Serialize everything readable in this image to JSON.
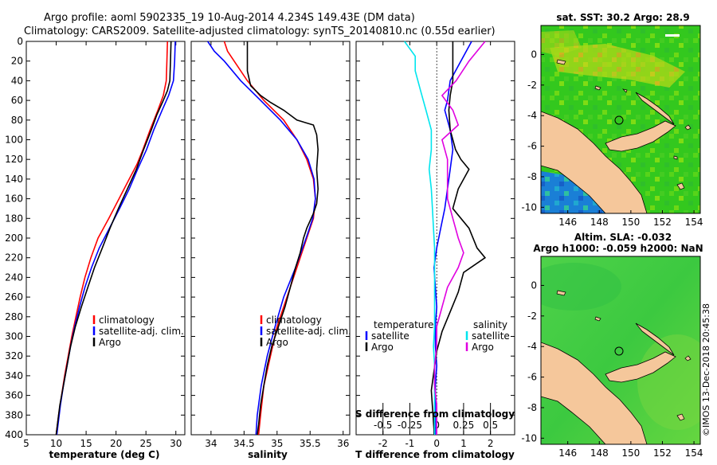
{
  "title": {
    "line1": "Argo profile: aoml 5902335_19 10-Aug-2014 4.234S 149.43E (DM data)",
    "line2": "Climatology: CARS2009. Satellite-adjusted climatology: synTS_20140810.nc (0.55d earlier)"
  },
  "credit": "©IMOS 13-Dec-2018 20:45:38",
  "colors": {
    "climatology": "#ff0000",
    "satellite": "#0000ff",
    "argo": "#000000",
    "salinity_sat": "#00e5ee",
    "salinity_diff": "#e000e0",
    "land": "#f5c79b",
    "sea_green": "#22cc22"
  },
  "chart_data": [
    {
      "id": "temperature",
      "type": "line",
      "xlabel": "temperature (deg C)",
      "ylabel": "",
      "xlim": [
        5,
        31.5
      ],
      "ylim": [
        400,
        0
      ],
      "x_ticks": [
        5,
        10,
        15,
        20,
        25,
        30
      ],
      "x_tick_labels": [
        "5",
        "10",
        "15",
        "20",
        "25",
        "30"
      ],
      "y_ticks": [
        0,
        20,
        40,
        60,
        80,
        100,
        120,
        140,
        160,
        180,
        200,
        220,
        240,
        260,
        280,
        300,
        320,
        340,
        360,
        380,
        400
      ],
      "legend": {
        "position": "bottom-right",
        "entries": [
          {
            "label": "climatology",
            "series": "climatology"
          },
          {
            "label": "satellite-adj. clim.",
            "series": "satellite"
          },
          {
            "label": "Argo",
            "series": "argo"
          }
        ]
      },
      "series": [
        {
          "name": "climatology",
          "color": "#ff0000",
          "depth": [
            0,
            20,
            40,
            55,
            70,
            90,
            110,
            125,
            140,
            160,
            180,
            200,
            220,
            240,
            260,
            280,
            300,
            320,
            340,
            360,
            380,
            400
          ],
          "values": [
            28.6,
            28.5,
            28.4,
            27.9,
            27.0,
            25.7,
            24.5,
            23.5,
            22.2,
            20.5,
            18.8,
            17.0,
            15.8,
            14.8,
            14.0,
            13.3,
            12.6,
            12.0,
            11.4,
            10.9,
            10.4,
            10.0
          ]
        },
        {
          "name": "satellite-adj. clim.",
          "color": "#0000ff",
          "depth": [
            0,
            20,
            40,
            55,
            70,
            90,
            110,
            130,
            150,
            170,
            190,
            210,
            230,
            250,
            270,
            290,
            310,
            330,
            350,
            370,
            390,
            400
          ],
          "values": [
            29.9,
            29.8,
            29.6,
            28.8,
            27.7,
            26.3,
            25.1,
            23.6,
            22.2,
            20.6,
            18.9,
            17.2,
            15.9,
            14.8,
            13.9,
            13.1,
            12.4,
            11.8,
            11.2,
            10.7,
            10.3,
            10.1
          ]
        },
        {
          "name": "Argo",
          "color": "#000000",
          "depth": [
            0,
            20,
            40,
            50,
            60,
            75,
            90,
            110,
            130,
            150,
            170,
            190,
            210,
            230,
            250,
            270,
            290,
            310,
            330,
            350,
            370,
            390,
            400
          ],
          "values": [
            29.2,
            29.1,
            29.0,
            28.6,
            27.9,
            26.8,
            25.9,
            24.6,
            23.4,
            21.9,
            20.4,
            19.0,
            17.7,
            16.4,
            15.3,
            14.2,
            13.2,
            12.4,
            11.8,
            11.2,
            10.6,
            10.2,
            10.0
          ]
        }
      ]
    },
    {
      "id": "salinity",
      "type": "line",
      "xlabel": "salinity",
      "ylabel": "",
      "xlim": [
        33.7,
        36.1
      ],
      "ylim": [
        400,
        0
      ],
      "x_ticks": [
        34,
        34.5,
        35,
        35.5,
        36
      ],
      "x_tick_labels": [
        "34",
        "34.5",
        "35",
        "35.5",
        "36"
      ],
      "legend": {
        "position": "bottom-right",
        "entries": [
          {
            "label": "climatology",
            "series": "climatology"
          },
          {
            "label": "satellite-adj. clim.",
            "series": "satellite"
          },
          {
            "label": "Argo",
            "series": "argo"
          }
        ]
      },
      "series": [
        {
          "name": "climatology",
          "color": "#ff0000",
          "depth": [
            0,
            10,
            20,
            40,
            60,
            80,
            100,
            120,
            140,
            160,
            180,
            200,
            230,
            260,
            290,
            320,
            350,
            380,
            400
          ],
          "values": [
            34.2,
            34.25,
            34.35,
            34.55,
            34.8,
            35.1,
            35.3,
            35.45,
            35.55,
            35.58,
            35.55,
            35.45,
            35.3,
            35.15,
            35.0,
            34.9,
            34.8,
            34.75,
            34.72
          ]
        },
        {
          "name": "satellite-adj. clim.",
          "color": "#0000ff",
          "depth": [
            0,
            10,
            20,
            40,
            60,
            80,
            100,
            120,
            140,
            160,
            180,
            200,
            230,
            260,
            290,
            320,
            350,
            380,
            400
          ],
          "values": [
            33.95,
            34.05,
            34.2,
            34.45,
            34.75,
            35.05,
            35.3,
            35.47,
            35.56,
            35.58,
            35.54,
            35.44,
            35.28,
            35.1,
            34.97,
            34.85,
            34.76,
            34.7,
            34.68
          ]
        },
        {
          "name": "Argo",
          "color": "#000000",
          "depth": [
            0,
            30,
            45,
            55,
            62,
            70,
            80,
            85,
            95,
            110,
            130,
            150,
            165,
            175,
            190,
            200,
            215,
            230,
            250,
            270,
            290,
            310,
            330,
            350,
            370,
            390,
            400
          ],
          "values": [
            34.55,
            34.55,
            34.6,
            34.75,
            34.9,
            35.1,
            35.3,
            35.55,
            35.6,
            35.62,
            35.6,
            35.62,
            35.6,
            35.55,
            35.45,
            35.4,
            35.35,
            35.28,
            35.2,
            35.12,
            35.02,
            34.92,
            34.85,
            34.8,
            34.75,
            34.72,
            34.7
          ]
        }
      ]
    },
    {
      "id": "difference",
      "type": "line",
      "xlabel": "T difference from climatology",
      "x2label": "S difference from climatology",
      "xlim": [
        -3.0,
        2.9
      ],
      "ylim": [
        400,
        0
      ],
      "x_ticks": [
        -2,
        -1,
        0,
        1,
        2
      ],
      "x_tick_labels": [
        "-2",
        "-1",
        "0",
        "1",
        "2"
      ],
      "x2_ticks": [
        -0.5,
        -0.25,
        0,
        0.25,
        0.5
      ],
      "x2_tick_labels": [
        "-0.5",
        "-0.25",
        "0",
        "0.25",
        "0.5"
      ],
      "legend": {
        "position": "bottom",
        "temperature_header": "temperature",
        "salinity_header": "salinity",
        "entries": [
          {
            "label": "satellite",
            "series": "T satellite",
            "group": "temperature"
          },
          {
            "label": "Argo",
            "series": "T Argo",
            "group": "temperature"
          },
          {
            "label": "satellite",
            "series": "S satellite",
            "group": "salinity"
          },
          {
            "label": "Argo",
            "series": "S Argo",
            "group": "salinity"
          }
        ]
      },
      "series": [
        {
          "name": "T satellite",
          "color": "#0000ff",
          "depth": [
            0,
            20,
            40,
            60,
            70,
            90,
            110,
            130,
            150,
            170,
            190,
            210,
            230,
            250,
            270,
            290,
            310,
            330,
            350,
            370,
            390,
            400
          ],
          "values": [
            1.3,
            0.9,
            0.5,
            0.4,
            0.3,
            0.5,
            0.6,
            0.5,
            0.4,
            0.3,
            0.15,
            0.0,
            -0.1,
            -0.05,
            0.0,
            -0.05,
            -0.05,
            0.0,
            -0.05,
            -0.05,
            -0.05,
            -0.05
          ]
        },
        {
          "name": "T Argo",
          "color": "#000000",
          "depth": [
            0,
            20,
            40,
            55,
            70,
            90,
            110,
            120,
            130,
            150,
            170,
            190,
            210,
            220,
            235,
            255,
            275,
            295,
            315,
            335,
            355,
            375,
            395,
            400
          ],
          "values": [
            0.6,
            0.6,
            0.6,
            0.5,
            0.45,
            0.5,
            0.7,
            0.9,
            1.2,
            0.8,
            0.6,
            1.2,
            1.5,
            1.8,
            1.0,
            0.8,
            0.5,
            0.2,
            0.0,
            -0.1,
            -0.2,
            -0.15,
            -0.1,
            -0.1
          ]
        },
        {
          "name": "S satellite",
          "color": "#00e5ee",
          "depth": [
            0,
            15,
            30,
            50,
            70,
            90,
            110,
            130,
            150,
            170,
            190,
            210,
            230,
            250,
            270,
            290,
            310,
            330,
            350,
            370,
            390,
            400
          ],
          "values": [
            -0.3,
            -0.2,
            -0.2,
            -0.15,
            -0.1,
            -0.05,
            -0.05,
            -0.07,
            -0.05,
            -0.04,
            -0.03,
            -0.02,
            -0.02,
            -0.02,
            -0.02,
            -0.02,
            -0.03,
            -0.02,
            -0.02,
            -0.02,
            -0.02,
            -0.02
          ]
        },
        {
          "name": "S Argo",
          "color": "#e000e0",
          "depth": [
            0,
            20,
            40,
            55,
            70,
            85,
            100,
            120,
            140,
            160,
            180,
            200,
            215,
            230,
            250,
            270,
            290,
            310,
            330,
            350,
            370,
            390,
            400
          ],
          "values": [
            0.45,
            0.3,
            0.18,
            0.05,
            0.15,
            0.2,
            0.05,
            0.1,
            0.1,
            0.1,
            0.15,
            0.2,
            0.25,
            0.2,
            0.1,
            0.05,
            0.0,
            0.0,
            -0.02,
            -0.02,
            0.0,
            0.0,
            0.0
          ]
        }
      ]
    },
    {
      "id": "sst_map",
      "type": "heatmap",
      "title": "sat. SST: 30.2 Argo: 28.9",
      "x_ticks": [
        146,
        148,
        150,
        152,
        154
      ],
      "x_tick_labels": [
        "146",
        "148",
        "150",
        "152",
        "154"
      ],
      "y_ticks": [
        0,
        -2,
        -4,
        -6,
        -8,
        -10
      ],
      "y_tick_labels": [
        "0",
        "-2",
        "-4",
        "-6",
        "-8",
        "-10"
      ],
      "xlim": [
        144.3,
        154.4
      ],
      "ylim": [
        -10.4,
        1.9
      ],
      "argo_position": {
        "lon": 149.43,
        "lat": -4.234
      }
    },
    {
      "id": "sla_map",
      "type": "heatmap",
      "title": "Altim. SLA: -0.032",
      "subtitle": "Argo h1000: -0.059 h2000: NaN",
      "x_ticks": [
        146,
        148,
        150,
        152,
        154
      ],
      "x_tick_labels": [
        "146",
        "148",
        "150",
        "152",
        "154"
      ],
      "y_ticks": [
        0,
        -2,
        -4,
        -6,
        -8,
        -10
      ],
      "y_tick_labels": [
        "0",
        "-2",
        "-4",
        "-6",
        "-8",
        "-10"
      ],
      "xlim": [
        144.3,
        154.4
      ],
      "ylim": [
        -10.4,
        1.9
      ],
      "argo_position": {
        "lon": 149.43,
        "lat": -4.234
      }
    }
  ]
}
